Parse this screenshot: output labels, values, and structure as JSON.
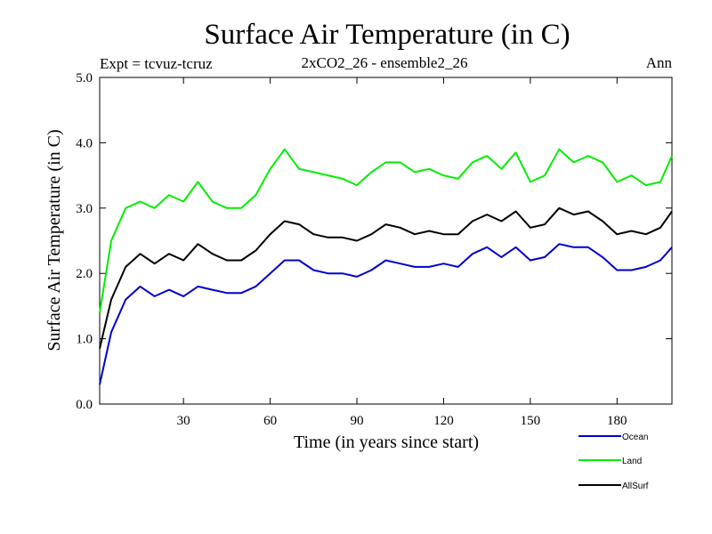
{
  "chart_data": {
    "type": "line",
    "title": "Surface Air Temperature (in C)",
    "subtitle": "2xCO2_26 - ensemble2_26",
    "annotation_left": "Expt = tcvuz-tcruz",
    "annotation_right": "Ann",
    "xlabel": "Time (in years since start)",
    "ylabel": "Surface Air Temperature (in C)",
    "xlim": [
      1,
      199
    ],
    "ylim": [
      0,
      5
    ],
    "x_ticks": [
      30,
      60,
      90,
      120,
      150,
      180
    ],
    "x_tick_labels": [
      "30",
      "60",
      "90",
      "120",
      "150",
      "180"
    ],
    "y_ticks": [
      0,
      1,
      2,
      3,
      4,
      5
    ],
    "y_tick_labels": [
      "0.0",
      "1.0",
      "2.0",
      "3.0",
      "4.0",
      "5.0"
    ],
    "grid": false,
    "legend_position": "bottom-right",
    "x": [
      1,
      5,
      10,
      15,
      20,
      25,
      30,
      35,
      40,
      45,
      50,
      55,
      60,
      65,
      70,
      75,
      80,
      85,
      90,
      95,
      100,
      105,
      110,
      115,
      120,
      125,
      130,
      135,
      140,
      145,
      150,
      155,
      160,
      165,
      170,
      175,
      180,
      185,
      190,
      195,
      199
    ],
    "series": [
      {
        "name": "Ocean",
        "color": "#0000cc",
        "values": [
          0.3,
          1.1,
          1.6,
          1.8,
          1.65,
          1.75,
          1.65,
          1.8,
          1.75,
          1.7,
          1.7,
          1.8,
          2.0,
          2.2,
          2.2,
          2.05,
          2.0,
          2.0,
          1.95,
          2.05,
          2.2,
          2.15,
          2.1,
          2.1,
          2.15,
          2.1,
          2.3,
          2.4,
          2.25,
          2.4,
          2.2,
          2.25,
          2.45,
          2.4,
          2.4,
          2.25,
          2.05,
          2.05,
          2.1,
          2.2,
          2.4
        ]
      },
      {
        "name": "Land",
        "color": "#00ee00",
        "values": [
          1.4,
          2.5,
          3.0,
          3.1,
          3.0,
          3.2,
          3.1,
          3.4,
          3.1,
          3.0,
          3.0,
          3.2,
          3.6,
          3.9,
          3.6,
          3.55,
          3.5,
          3.45,
          3.35,
          3.55,
          3.7,
          3.7,
          3.55,
          3.6,
          3.5,
          3.45,
          3.7,
          3.8,
          3.6,
          3.85,
          3.4,
          3.5,
          3.9,
          3.7,
          3.8,
          3.7,
          3.4,
          3.5,
          3.35,
          3.4,
          3.8
        ]
      },
      {
        "name": "AllSurf",
        "color": "#000000",
        "values": [
          0.85,
          1.6,
          2.1,
          2.3,
          2.15,
          2.3,
          2.2,
          2.45,
          2.3,
          2.2,
          2.2,
          2.35,
          2.6,
          2.8,
          2.75,
          2.6,
          2.55,
          2.55,
          2.5,
          2.6,
          2.75,
          2.7,
          2.6,
          2.65,
          2.6,
          2.6,
          2.8,
          2.9,
          2.8,
          2.95,
          2.7,
          2.75,
          3.0,
          2.9,
          2.95,
          2.8,
          2.6,
          2.65,
          2.6,
          2.7,
          2.95
        ]
      }
    ]
  }
}
